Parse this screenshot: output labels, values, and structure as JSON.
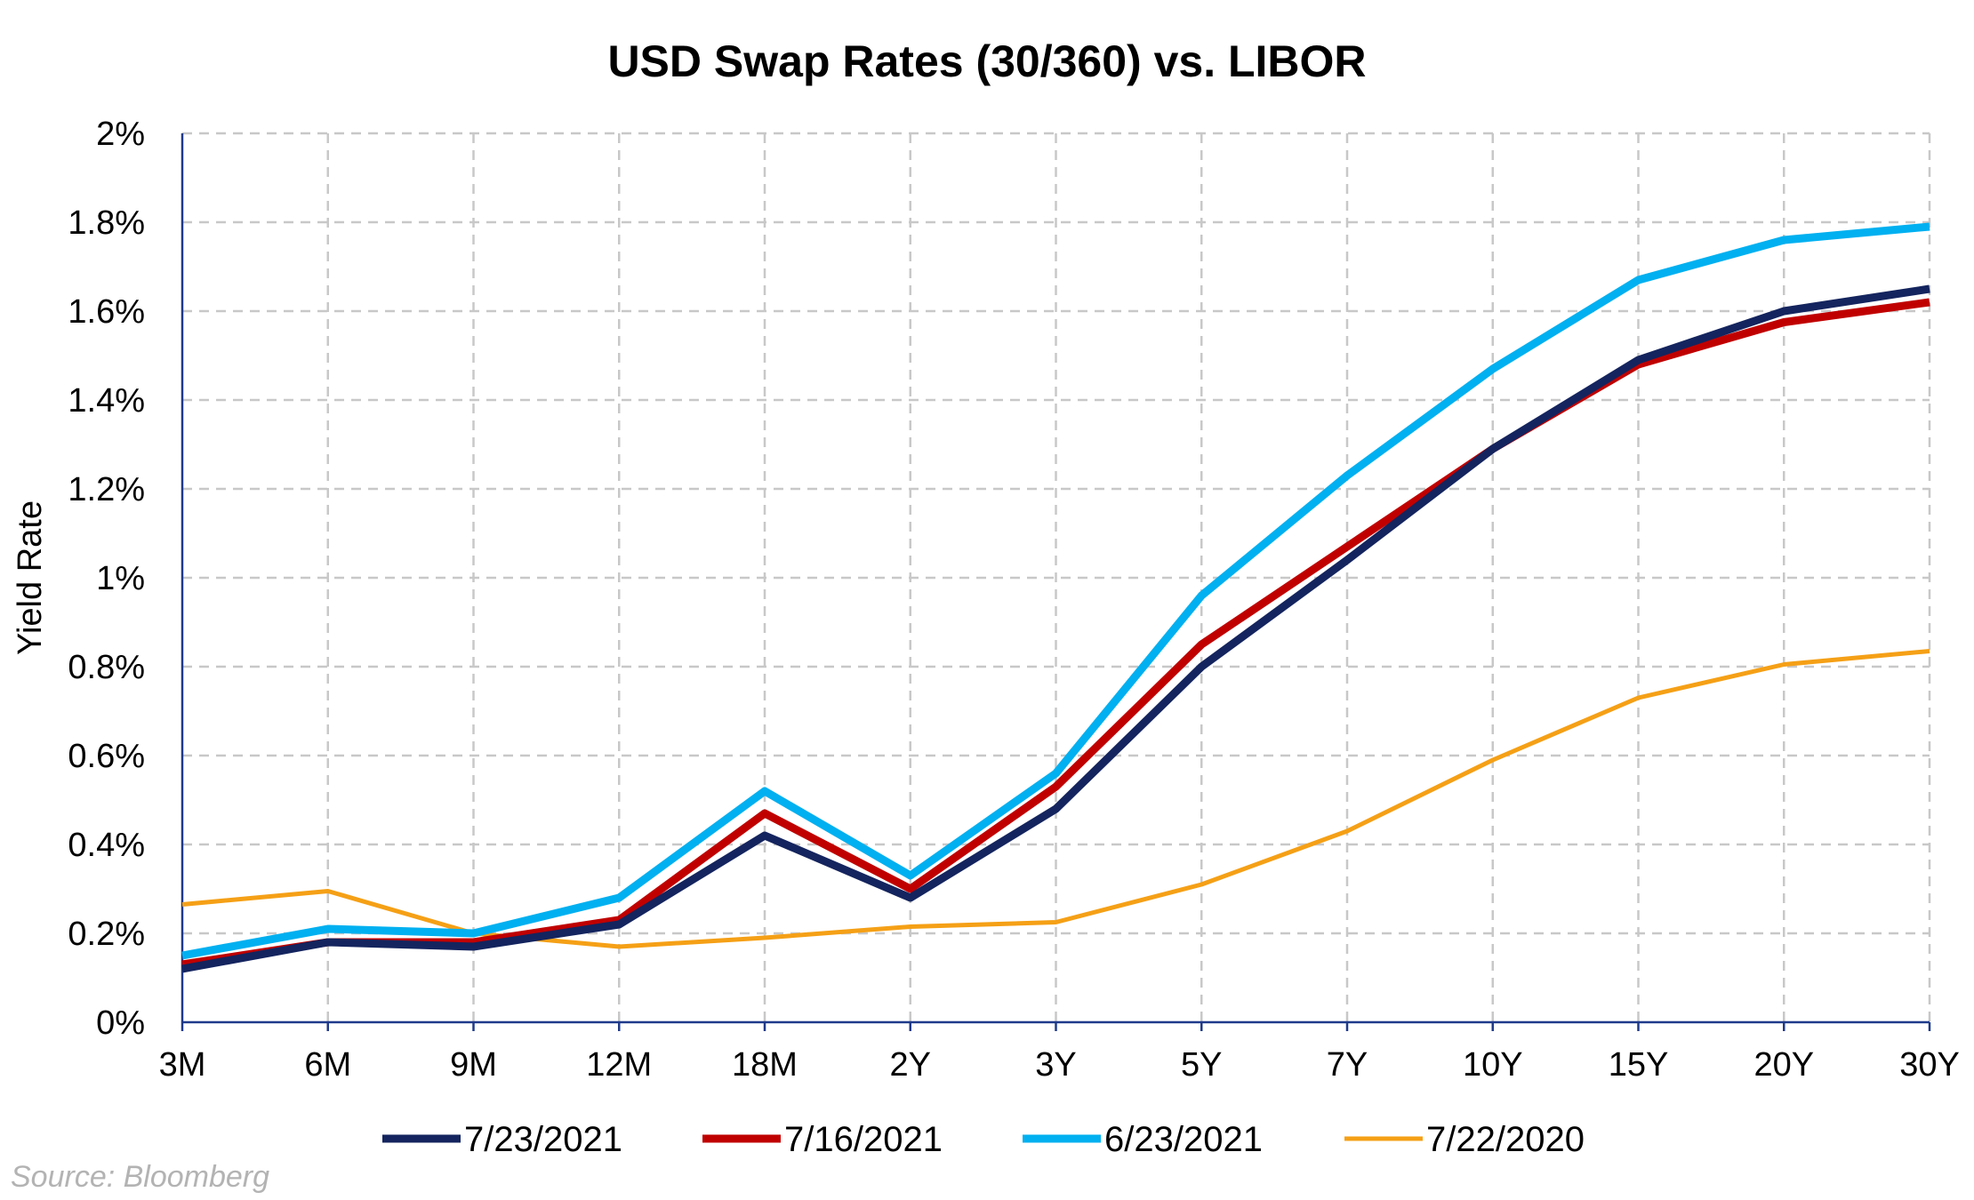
{
  "chart_data": {
    "type": "line",
    "title": "USD Swap Rates (30/360) vs. LIBOR",
    "xlabel": "",
    "ylabel": "Yield Rate",
    "ylim": [
      0,
      2
    ],
    "yticks": [
      {
        "value": 0,
        "label": "0%"
      },
      {
        "value": 0.2,
        "label": "0.2%"
      },
      {
        "value": 0.4,
        "label": "0.4%"
      },
      {
        "value": 0.6,
        "label": "0.6%"
      },
      {
        "value": 0.8,
        "label": "0.8%"
      },
      {
        "value": 1.0,
        "label": "1%"
      },
      {
        "value": 1.2,
        "label": "1.2%"
      },
      {
        "value": 1.4,
        "label": "1.4%"
      },
      {
        "value": 1.6,
        "label": "1.6%"
      },
      {
        "value": 1.8,
        "label": "1.8%"
      },
      {
        "value": 2.0,
        "label": "2%"
      }
    ],
    "categories": [
      "3M",
      "6M",
      "9M",
      "12M",
      "18M",
      "2Y",
      "3Y",
      "5Y",
      "7Y",
      "10Y",
      "15Y",
      "20Y",
      "30Y"
    ],
    "grid": true,
    "legend_position": "bottom",
    "series": [
      {
        "name": "7/23/2021",
        "color": "#14245e",
        "width": "thick",
        "values": [
          0.12,
          0.18,
          0.17,
          0.22,
          0.42,
          0.28,
          0.48,
          0.8,
          1.04,
          1.29,
          1.49,
          1.6,
          1.65
        ]
      },
      {
        "name": "7/16/2021",
        "color": "#c00000",
        "width": "thick",
        "values": [
          0.13,
          0.18,
          0.18,
          0.23,
          0.47,
          0.3,
          0.53,
          0.85,
          1.07,
          1.29,
          1.48,
          1.575,
          1.62
        ]
      },
      {
        "name": "6/23/2021",
        "color": "#00b0f0",
        "width": "thick",
        "values": [
          0.15,
          0.21,
          0.2,
          0.28,
          0.52,
          0.33,
          0.56,
          0.96,
          1.23,
          1.47,
          1.67,
          1.76,
          1.79
        ]
      },
      {
        "name": "7/22/2020",
        "color": "#f5a016",
        "width": "thin",
        "values": [
          0.265,
          0.295,
          0.2,
          0.17,
          0.19,
          0.215,
          0.225,
          0.31,
          0.43,
          0.59,
          0.73,
          0.805,
          0.835
        ]
      }
    ],
    "axis_color": "#1f3a8a"
  },
  "source": "Source: Bloomberg"
}
